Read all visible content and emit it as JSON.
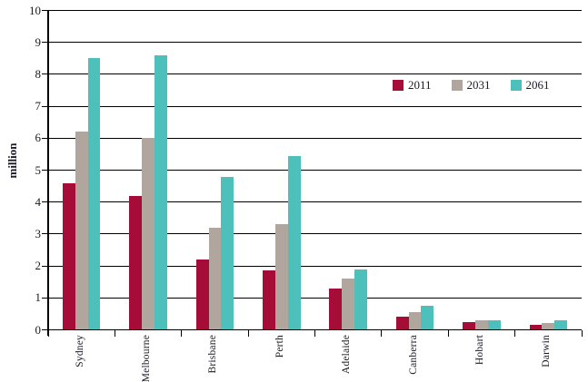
{
  "chart_data": {
    "type": "bar",
    "title": "",
    "ylabel": "million",
    "xlabel": "",
    "ylim": [
      0,
      10
    ],
    "ytick_step": 1,
    "grid": true,
    "legend_position": "top-right-inside",
    "categories": [
      "Sydney",
      "Melbourne",
      "Brisbane",
      "Perth",
      "Adelaide",
      "Canberra",
      "Hobart",
      "Darwin"
    ],
    "series": [
      {
        "name": "2011",
        "color": "#A50D38",
        "values": [
          4.6,
          4.2,
          2.2,
          1.85,
          1.3,
          0.4,
          0.25,
          0.15
        ]
      },
      {
        "name": "2031",
        "color": "#B0A69D",
        "values": [
          6.2,
          6.0,
          3.2,
          3.3,
          1.6,
          0.55,
          0.3,
          0.2
        ]
      },
      {
        "name": "2061",
        "color": "#4EC0BC",
        "values": [
          8.5,
          8.6,
          4.8,
          5.45,
          1.9,
          0.75,
          0.3,
          0.3
        ]
      }
    ]
  },
  "colors": {
    "axis": "#000000",
    "grid": "#000000",
    "text": "#1A1A26",
    "background": "#FFFFFF"
  }
}
